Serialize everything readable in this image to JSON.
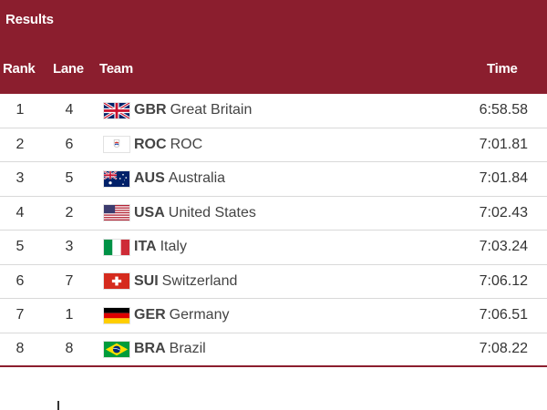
{
  "header": {
    "title": "Results",
    "columns": {
      "rank": "Rank",
      "lane": "Lane",
      "team": "Team",
      "time": "Time"
    }
  },
  "rows": [
    {
      "rank": "1",
      "lane": "4",
      "code": "GBR",
      "name": "Great Britain",
      "time": "6:58.58",
      "flag": "gbr-flag-icon"
    },
    {
      "rank": "2",
      "lane": "6",
      "code": "ROC",
      "name": "ROC",
      "time": "7:01.81",
      "flag": "roc-flag-icon"
    },
    {
      "rank": "3",
      "lane": "5",
      "code": "AUS",
      "name": "Australia",
      "time": "7:01.84",
      "flag": "aus-flag-icon"
    },
    {
      "rank": "4",
      "lane": "2",
      "code": "USA",
      "name": "United States",
      "time": "7:02.43",
      "flag": "usa-flag-icon"
    },
    {
      "rank": "5",
      "lane": "3",
      "code": "ITA",
      "name": "Italy",
      "time": "7:03.24",
      "flag": "ita-flag-icon"
    },
    {
      "rank": "6",
      "lane": "7",
      "code": "SUI",
      "name": "Switzerland",
      "time": "7:06.12",
      "flag": "sui-flag-icon"
    },
    {
      "rank": "7",
      "lane": "1",
      "code": "GER",
      "name": "Germany",
      "time": "7:06.51",
      "flag": "ger-flag-icon"
    },
    {
      "rank": "8",
      "lane": "8",
      "code": "BRA",
      "name": "Brazil",
      "time": "7:08.22",
      "flag": "bra-flag-icon"
    }
  ],
  "colors": {
    "header_bg": "#8b1e2e",
    "divider": "#d9d9d9"
  }
}
